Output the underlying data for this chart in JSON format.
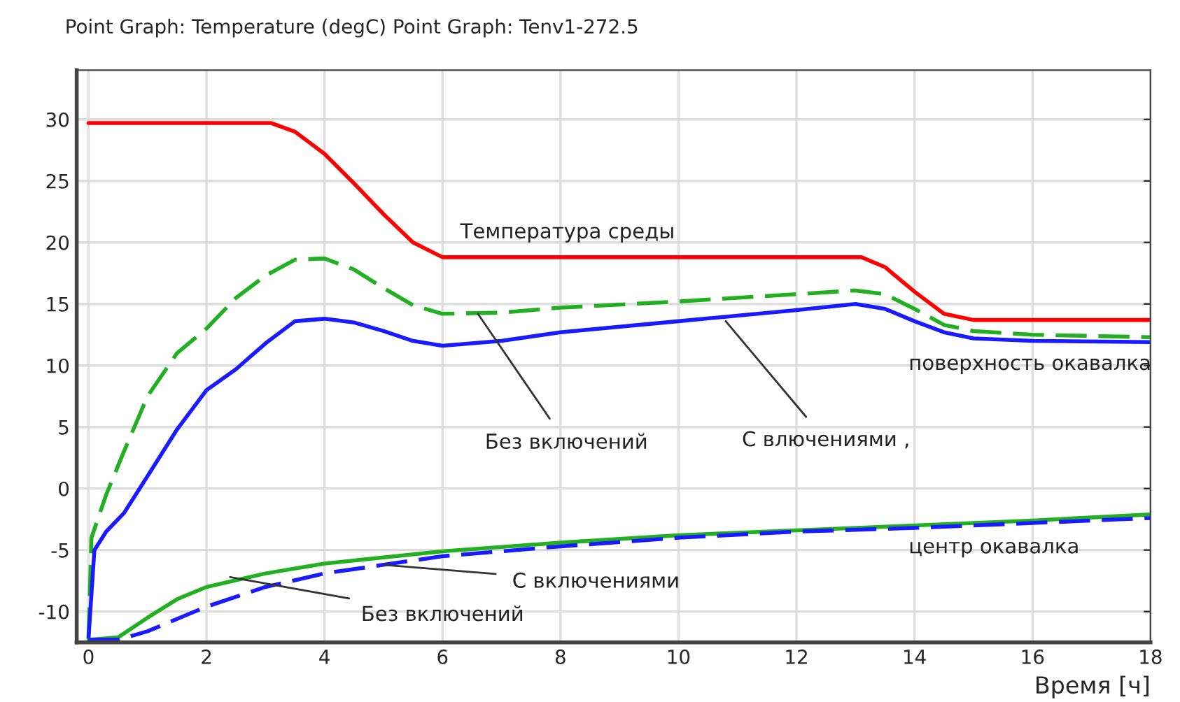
{
  "chart_data": {
    "type": "line",
    "title": "Point Graph: Temperature (degC) Point Graph: Tenv1-272.5",
    "xlabel": "Время [ч]",
    "xlim": [
      -0.2,
      18
    ],
    "ylim": [
      -12.5,
      34
    ],
    "xticks": [
      0,
      2,
      4,
      6,
      8,
      10,
      12,
      14,
      16,
      18
    ],
    "yticks": [
      -10,
      -5,
      0,
      5,
      10,
      15,
      20,
      25,
      30
    ],
    "grid": true,
    "legend": false,
    "series": [
      {
        "color": "#ff0000",
        "line_style": "solid",
        "x": [
          0,
          3.1,
          3.5,
          4,
          4.5,
          5,
          5.5,
          6,
          13.1,
          13.5,
          14,
          14.5,
          15,
          18
        ],
        "values": [
          29.7,
          29.7,
          29.0,
          27.2,
          24.8,
          22.3,
          20.0,
          18.8,
          18.8,
          18.0,
          16.0,
          14.2,
          13.7,
          13.7
        ]
      },
      {
        "color": "#22b022",
        "line_style": "dashed",
        "x": [
          0,
          0.05,
          0.3,
          0.6,
          1,
          1.5,
          2,
          2.5,
          3,
          3.5,
          4,
          4.5,
          5,
          5.5,
          6,
          7,
          8,
          10,
          12,
          13,
          13.5,
          14,
          14.5,
          15,
          16,
          18
        ],
        "values": [
          -12.2,
          -4,
          -0.5,
          3,
          7.5,
          11,
          13,
          15.5,
          17.3,
          18.6,
          18.7,
          17.8,
          16.3,
          14.9,
          14.2,
          14.3,
          14.7,
          15.2,
          15.8,
          16.1,
          15.8,
          14.6,
          13.3,
          12.8,
          12.5,
          12.3
        ]
      },
      {
        "color": "#1a1aff",
        "line_style": "solid",
        "x": [
          0,
          0.1,
          0.3,
          0.6,
          1,
          1.5,
          2,
          2.5,
          3,
          3.5,
          4,
          4.5,
          5,
          5.5,
          6,
          7,
          8,
          10,
          12,
          13,
          13.5,
          14,
          14.5,
          15,
          16,
          18
        ],
        "values": [
          -12.2,
          -5,
          -3.5,
          -2,
          1,
          4.8,
          8,
          9.7,
          11.8,
          13.6,
          13.8,
          13.5,
          12.8,
          12.0,
          11.6,
          12.0,
          12.7,
          13.6,
          14.5,
          15.0,
          14.6,
          13.6,
          12.7,
          12.2,
          12.0,
          11.9
        ]
      },
      {
        "color": "#22b022",
        "line_style": "solid",
        "x": [
          0,
          0.5,
          1,
          1.5,
          2,
          3,
          4,
          5,
          6,
          8,
          10,
          12,
          14,
          16,
          18
        ],
        "values": [
          -12.3,
          -12.1,
          -10.5,
          -9,
          -8,
          -6.9,
          -6.1,
          -5.6,
          -5.1,
          -4.4,
          -3.8,
          -3.4,
          -3.0,
          -2.6,
          -2.1
        ]
      },
      {
        "color": "#1a1aff",
        "line_style": "dashed",
        "x": [
          0,
          0.5,
          1,
          2,
          3,
          4,
          5,
          6,
          8,
          10,
          12,
          14,
          16,
          18
        ],
        "values": [
          -12.3,
          -12.3,
          -11.6,
          -9.6,
          -8.0,
          -6.9,
          -6.2,
          -5.5,
          -4.7,
          -4.0,
          -3.5,
          -3.2,
          -2.8,
          -2.4
        ]
      }
    ],
    "annotations": [
      {
        "text": "Температура среды",
        "x": 7,
        "y": 18.8
      },
      {
        "text": "поверхность окавалка",
        "x": 16.5,
        "y": 12.0
      },
      {
        "text": "Без включений",
        "x": 6.6,
        "y": 14.2
      },
      {
        "text": "С влючениями ,",
        "x": 10.8,
        "y": 13.6
      },
      {
        "text": "С включениями",
        "x": 5,
        "y": -6.2
      },
      {
        "text": "Без включений",
        "x": 2.4,
        "y": -7.2
      },
      {
        "text": "центр окавалка",
        "x": 16,
        "y": -2.7
      }
    ]
  }
}
